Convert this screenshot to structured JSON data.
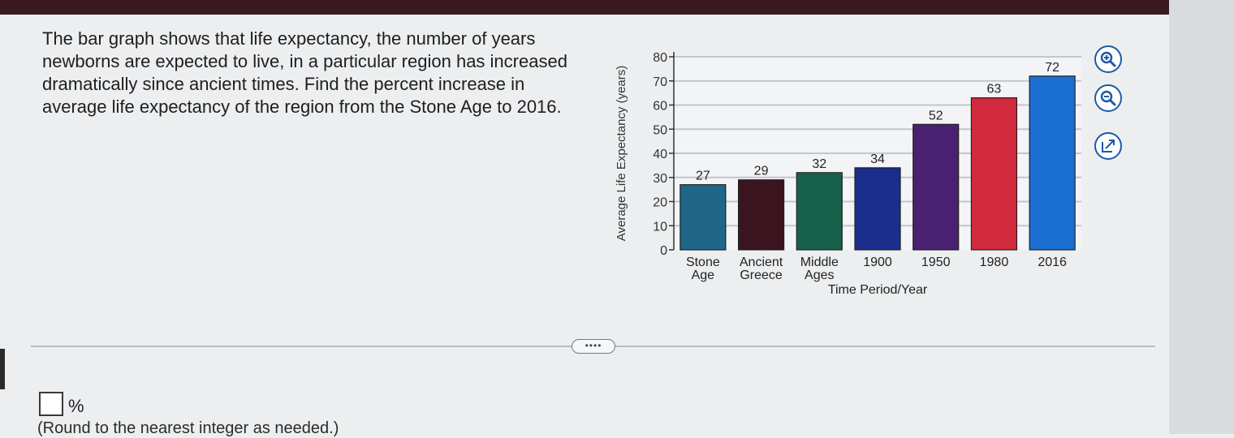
{
  "question": {
    "lines": [
      "The bar graph shows that life expectancy, the number of years",
      "newborns are expected to live, in a particular region has increased",
      "dramatically since ancient times. Find the percent increase in",
      "average life expectancy of the region from the Stone Age to 2016."
    ]
  },
  "more_button": "••••",
  "answer": {
    "value": "",
    "unit": "%",
    "hint": "(Round to the nearest integer as needed.)"
  },
  "chart_data": {
    "type": "bar",
    "ylabel": "Average Life Expectancy (years)",
    "xlabel": "Time Period/Year",
    "ylim": [
      0,
      80
    ],
    "yticks": [
      0,
      10,
      20,
      30,
      40,
      50,
      60,
      70,
      80
    ],
    "grid": true,
    "categories": [
      [
        "Stone",
        "Age"
      ],
      [
        "Ancient",
        "Greece"
      ],
      [
        "Middle",
        "Ages"
      ],
      [
        "1900"
      ],
      [
        "1950"
      ],
      [
        "1980"
      ],
      [
        "2016"
      ]
    ],
    "values": [
      27,
      29,
      32,
      34,
      52,
      63,
      72
    ],
    "colors": [
      "#1f6688",
      "#3a1520",
      "#17614a",
      "#1b2e8c",
      "#4a2070",
      "#d12a3c",
      "#1b6fd0"
    ]
  },
  "tools": [
    {
      "name": "zoom-in-icon"
    },
    {
      "name": "zoom-out-icon"
    },
    {
      "name": "popout-icon"
    }
  ],
  "colors": {
    "accent": "#1b6fd0",
    "topbar": "#3a1a1f"
  }
}
